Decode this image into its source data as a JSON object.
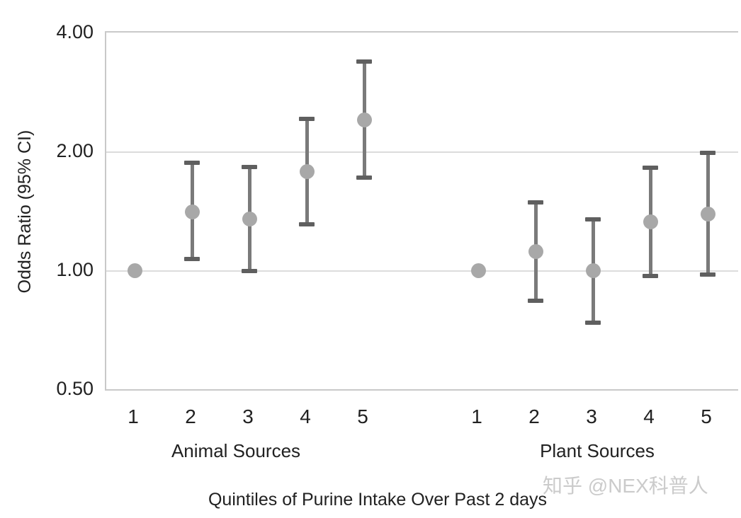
{
  "watermark": "知乎 @NEX科普人",
  "chart_data": {
    "type": "scatter",
    "subtype": "forest-plot-error-bars",
    "title": "",
    "xlabel": "Quintiles of Purine Intake Over Past 2 days",
    "ylabel": "Odds Ratio (95% CI)",
    "yscale": "log2",
    "ylim": [
      0.5,
      4
    ],
    "yticks": [
      {
        "label": "4.00",
        "value": 4
      },
      {
        "label": "2.00",
        "value": 2
      },
      {
        "label": "1.00",
        "value": 1
      },
      {
        "label": "0.50",
        "value": 0.5
      }
    ],
    "gridlines_at": [
      2,
      1
    ],
    "grid": true,
    "legend": "none",
    "categories": [
      "1",
      "2",
      "3",
      "4",
      "5"
    ],
    "groups": [
      {
        "name": "Animal Sources",
        "points": [
          {
            "quintile": "1",
            "or": 1.0,
            "ci_low": null,
            "ci_high": null
          },
          {
            "quintile": "2",
            "or": 1.41,
            "ci_low": 1.07,
            "ci_high": 1.88
          },
          {
            "quintile": "3",
            "or": 1.35,
            "ci_low": 1.0,
            "ci_high": 1.83
          },
          {
            "quintile": "4",
            "or": 1.78,
            "ci_low": 1.31,
            "ci_high": 2.42
          },
          {
            "quintile": "5",
            "or": 2.41,
            "ci_low": 1.72,
            "ci_high": 3.38
          }
        ]
      },
      {
        "name": "Plant Sources",
        "points": [
          {
            "quintile": "1",
            "or": 1.0,
            "ci_low": null,
            "ci_high": null
          },
          {
            "quintile": "2",
            "or": 1.12,
            "ci_low": 0.84,
            "ci_high": 1.49
          },
          {
            "quintile": "3",
            "or": 1.0,
            "ci_low": 0.74,
            "ci_high": 1.35
          },
          {
            "quintile": "4",
            "or": 1.33,
            "ci_low": 0.97,
            "ci_high": 1.82
          },
          {
            "quintile": "5",
            "or": 1.39,
            "ci_low": 0.98,
            "ci_high": 1.99
          }
        ]
      }
    ],
    "colors": {
      "marker": "#a8a8a8",
      "error_line": "#7a7a7a",
      "error_cap": "#5f5f5f",
      "gridline": "#dcdcdc",
      "frame": "#c9c9c9",
      "text": "#212121",
      "watermark": "#cbcbcb"
    }
  }
}
